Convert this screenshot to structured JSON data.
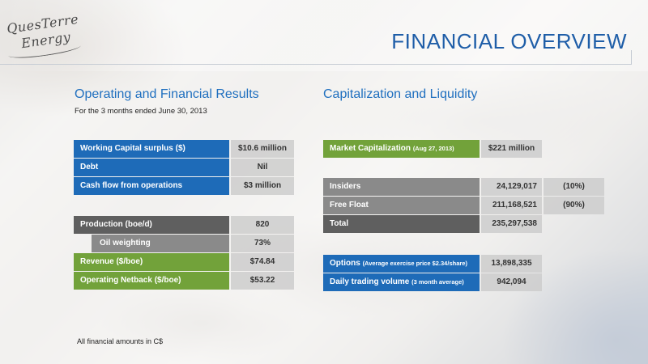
{
  "logo": {
    "line1": "QuesTerre",
    "line2": "Energy"
  },
  "title": "FINANCIAL OVERVIEW",
  "left": {
    "heading": "Operating and Financial Results",
    "subheading": "For the 3 months ended June 30, 2013",
    "table1": [
      {
        "label": "Working Capital surplus ($)",
        "value": "$10.6 million"
      },
      {
        "label": "Debt",
        "value": "Nil"
      },
      {
        "label": "Cash flow from operations",
        "value": "$3 million"
      }
    ],
    "table2": [
      {
        "label": "Production (boe/d)",
        "value": "820"
      },
      {
        "label": "Oil weighting",
        "value": "73%"
      },
      {
        "label": "Revenue ($/boe)",
        "value": "$74.84"
      },
      {
        "label": "Operating Netback ($/boe)",
        "value": "$53.22"
      }
    ],
    "footnote": "All financial amounts in C$"
  },
  "right": {
    "heading": "Capitalization and Liquidity",
    "market_cap": {
      "label": "Market Capitalization",
      "note": "(Aug 27, 2013)",
      "value": "$221 million"
    },
    "shares": [
      {
        "label": "Insiders",
        "value": "24,129,017",
        "pct": "(10%)"
      },
      {
        "label": "Free Float",
        "value": "211,168,521",
        "pct": "(90%)"
      },
      {
        "label": "Total",
        "value": "235,297,538"
      }
    ],
    "liquidity": [
      {
        "label": "Options",
        "note": "(Average exercise price $2.34/share)",
        "value": "13,898,335"
      },
      {
        "label": "Daily trading volume",
        "note": "(3 month average)",
        "value": "942,094"
      }
    ]
  }
}
